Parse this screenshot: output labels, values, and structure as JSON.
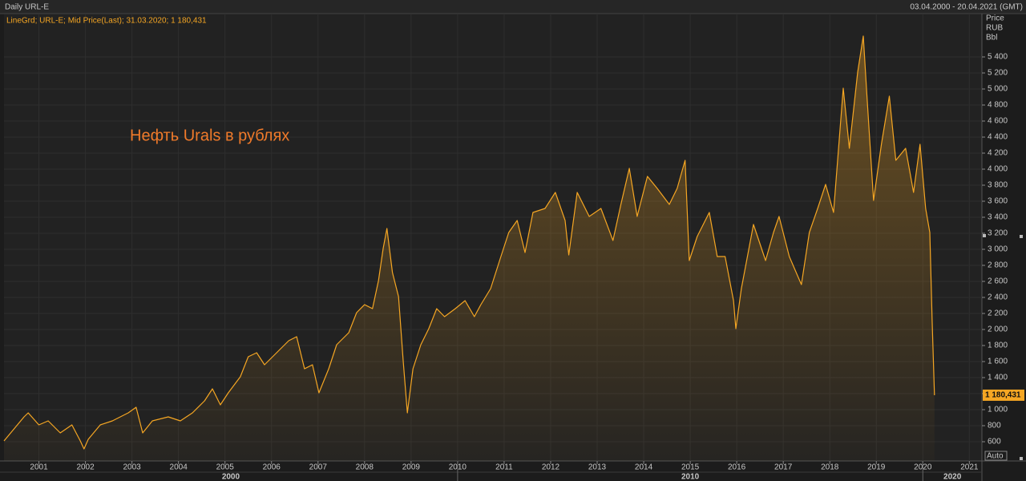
{
  "header": {
    "title": "Daily URL-E",
    "range": "03.04.2000 - 20.04.2021 (GMT)"
  },
  "chart_data": {
    "type": "line",
    "annotation": "Нефть Urals в рублях",
    "y_unit_labels": [
      "Price",
      "RUB",
      "Bbl"
    ],
    "axis_mode": "Auto",
    "x": [
      2000.25,
      2000.68,
      2000.77,
      2001.0,
      2001.2,
      2001.46,
      2001.71,
      2001.89,
      2001.97,
      2002.06,
      2002.32,
      2002.58,
      2002.75,
      2002.92,
      2003.09,
      2003.23,
      2003.44,
      2003.78,
      2004.04,
      2004.3,
      2004.56,
      2004.73,
      2004.9,
      2005.07,
      2005.33,
      2005.5,
      2005.68,
      2005.85,
      2006.11,
      2006.37,
      2006.54,
      2006.71,
      2006.88,
      2007.02,
      2007.23,
      2007.4,
      2007.66,
      2007.83,
      2008.0,
      2008.17,
      2008.3,
      2008.4,
      2008.48,
      2008.6,
      2008.73,
      2008.83,
      2008.92,
      2009.04,
      2009.21,
      2009.38,
      2009.55,
      2009.72,
      2009.95,
      2010.16,
      2010.36,
      2010.5,
      2010.71,
      2010.93,
      2011.1,
      2011.28,
      2011.45,
      2011.62,
      2011.88,
      2012.1,
      2012.31,
      2012.39,
      2012.57,
      2012.83,
      2013.08,
      2013.34,
      2013.51,
      2013.69,
      2013.86,
      2014.08,
      2014.29,
      2014.55,
      2014.72,
      2014.89,
      2014.98,
      2015.15,
      2015.41,
      2015.58,
      2015.75,
      2015.93,
      2015.98,
      2016.1,
      2016.36,
      2016.62,
      2016.79,
      2016.91,
      2017.13,
      2017.39,
      2017.56,
      2017.74,
      2017.91,
      2018.08,
      2018.29,
      2018.42,
      2018.6,
      2018.72,
      2018.8,
      2018.94,
      2019.11,
      2019.28,
      2019.42,
      2019.63,
      2019.8,
      2019.94,
      2020.06,
      2020.15,
      2020.2,
      2020.25
    ],
    "series": [
      {
        "name": "LineGrd; URL-E; Mid Price(Last); 31.03.2020; 1 180,431",
        "color": "#f5a623",
        "values": [
          610,
          910,
          960,
          810,
          860,
          710,
          810,
          610,
          510,
          630,
          810,
          860,
          910,
          960,
          1030,
          710,
          860,
          910,
          860,
          960,
          1110,
          1260,
          1060,
          1210,
          1410,
          1660,
          1710,
          1560,
          1710,
          1860,
          1910,
          1510,
          1560,
          1210,
          1510,
          1810,
          1960,
          2210,
          2310,
          2260,
          2610,
          3010,
          3260,
          2710,
          2410,
          1610,
          960,
          1510,
          1810,
          2010,
          2260,
          2160,
          2260,
          2360,
          2160,
          2310,
          2510,
          2910,
          3210,
          3360,
          2960,
          3460,
          3510,
          3710,
          3360,
          2930,
          3710,
          3410,
          3510,
          3110,
          3560,
          4010,
          3410,
          3910,
          3760,
          3560,
          3760,
          4110,
          2860,
          3160,
          3460,
          2910,
          2910,
          2360,
          2010,
          2510,
          3310,
          2860,
          3210,
          3410,
          2910,
          2560,
          3210,
          3510,
          3810,
          3460,
          5010,
          4260,
          5210,
          5660,
          4910,
          3610,
          4310,
          4910,
          4110,
          4260,
          3710,
          4310,
          3510,
          3210,
          2110,
          1180.431
        ]
      }
    ],
    "last_value": {
      "value": 1180.431,
      "label": "1 180,431"
    },
    "xlim": [
      2000.25,
      2021.27
    ],
    "xticks": [
      2001,
      2002,
      2003,
      2004,
      2005,
      2006,
      2007,
      2008,
      2009,
      2010,
      2011,
      2012,
      2013,
      2014,
      2015,
      2016,
      2017,
      2018,
      2019,
      2020,
      2021
    ],
    "decade_ticks": [
      2000,
      2010,
      2020
    ],
    "ylim": [
      360,
      5930
    ],
    "yticks": [
      600,
      800,
      {
        "value": 1000,
        "label": "1 000"
      },
      {
        "value": 1200,
        "label": "1 200"
      },
      {
        "value": 1400,
        "label": "1 400"
      },
      {
        "value": 1600,
        "label": "1 600"
      },
      {
        "value": 1800,
        "label": "1 800"
      },
      {
        "value": 2000,
        "label": "2 000"
      },
      {
        "value": 2200,
        "label": "2 200"
      },
      {
        "value": 2400,
        "label": "2 400"
      },
      {
        "value": 2600,
        "label": "2 600"
      },
      {
        "value": 2800,
        "label": "2 800"
      },
      {
        "value": 3000,
        "label": "3 000"
      },
      {
        "value": 3200,
        "label": "3 200"
      },
      {
        "value": 3400,
        "label": "3 400"
      },
      {
        "value": 3600,
        "label": "3 600"
      },
      {
        "value": 3800,
        "label": "3 800"
      },
      {
        "value": 4000,
        "label": "4 000"
      },
      {
        "value": 4200,
        "label": "4 200"
      },
      {
        "value": 4400,
        "label": "4 400"
      },
      {
        "value": 4600,
        "label": "4 600"
      },
      {
        "value": 4800,
        "label": "4 800"
      },
      {
        "value": 5000,
        "label": "5 000"
      },
      {
        "value": 5200,
        "label": "5 200"
      },
      {
        "value": 5400,
        "label": "5 400"
      }
    ],
    "grid": true
  }
}
